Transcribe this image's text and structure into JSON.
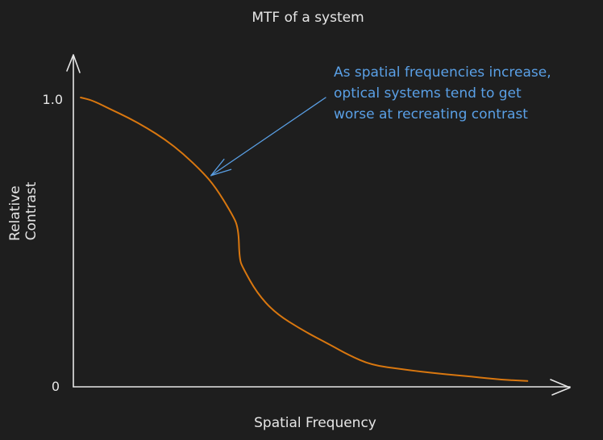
{
  "chart_data": {
    "type": "line",
    "title": "MTF of a system",
    "xlabel": "Spatial Frequency",
    "ylabel": [
      "Relative",
      "Contrast"
    ],
    "xlim": [
      0,
      1
    ],
    "ylim": [
      0,
      1
    ],
    "y_ticks": [
      {
        "value": 0,
        "label": "0"
      },
      {
        "value": 1,
        "label": "1.0"
      }
    ],
    "grid": false,
    "legend": "none",
    "series": [
      {
        "color": "#d9770f",
        "x": [
          0.016,
          0.042,
          0.08,
          0.12,
          0.16,
          0.2,
          0.24,
          0.28,
          0.31,
          0.345,
          0.36,
          0.362,
          0.37,
          0.4,
          0.44,
          0.5,
          0.56,
          0.6,
          0.65,
          0.72,
          0.8,
          0.87,
          0.93,
          0.99
        ],
        "y": [
          1.0,
          0.99,
          0.96,
          0.93,
          0.895,
          0.855,
          0.805,
          0.745,
          0.69,
          0.6,
          0.55,
          0.44,
          0.41,
          0.325,
          0.255,
          0.195,
          0.145,
          0.11,
          0.075,
          0.06,
          0.045,
          0.035,
          0.025,
          0.02
        ]
      }
    ],
    "annotations": [
      {
        "lines": [
          "As spatial frequencies increase,",
          "optical systems tend to get",
          "worse at recreating contrast"
        ],
        "color": "#5aa0e6",
        "arrow_from": {
          "x": 0.55,
          "y": 1.0
        },
        "arrow_to": {
          "x": 0.3,
          "y": 0.73
        }
      }
    ]
  },
  "colors": {
    "background": "#1e1e1e",
    "axis": "#e6e6e6",
    "curve": "#d9770f",
    "annotation": "#5aa0e6"
  }
}
